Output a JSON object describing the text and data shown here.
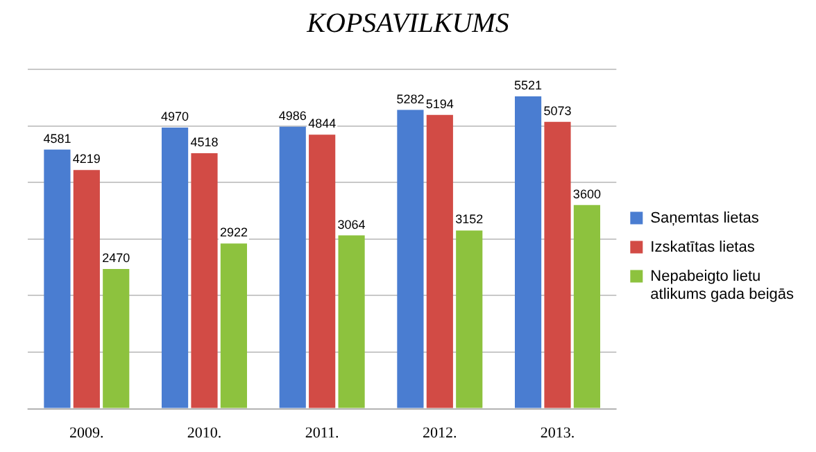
{
  "chart_data": {
    "type": "bar",
    "title": "KOPSAVILKUMS",
    "categories": [
      "2009.",
      "2010.",
      "2011.",
      "2012.",
      "2013."
    ],
    "series": [
      {
        "name": "Saņemtas lietas",
        "color": "#4a7dd1",
        "values": [
          4581,
          4970,
          4986,
          5282,
          5521
        ]
      },
      {
        "name": "Izskatītas lietas",
        "color": "#d24b45",
        "values": [
          4219,
          4518,
          4844,
          5194,
          5073
        ]
      },
      {
        "name": "Nepabeigto lietu atlikums gada beigās",
        "color": "#8dc23e",
        "values": [
          2470,
          2922,
          3064,
          3152,
          3600
        ]
      }
    ],
    "ylim": [
      0,
      6000
    ],
    "yticks": [
      {
        "value": 0,
        "label": null
      },
      {
        "value": 1000,
        "label": null
      },
      {
        "value": 2000,
        "label": null
      },
      {
        "value": 3000,
        "label": null
      },
      {
        "value": 4000,
        "label": null
      },
      {
        "value": 5000,
        "label": null
      },
      {
        "value": 6000,
        "label": null
      }
    ],
    "tick_labels": "x",
    "grid": "y",
    "legend": "right",
    "data_labels": true
  }
}
